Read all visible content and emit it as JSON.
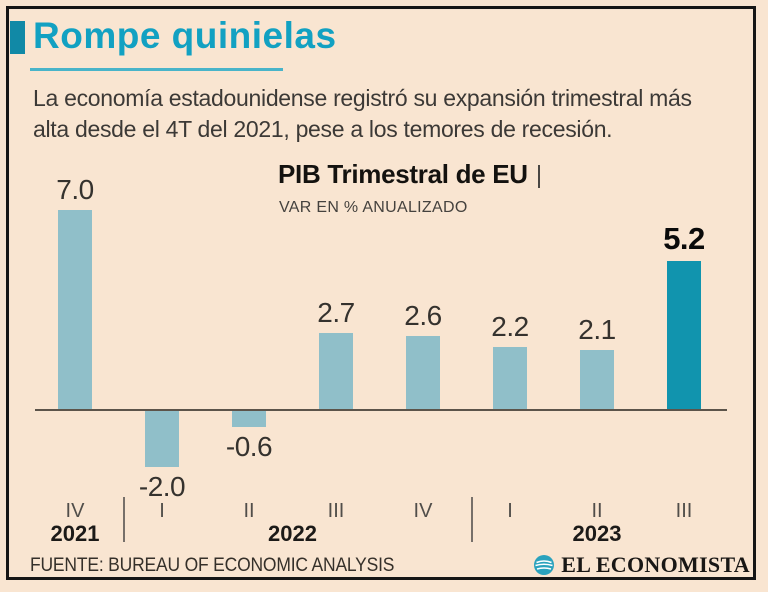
{
  "header": {
    "title": "Rompe quinielas",
    "subtitle_lines": [
      "La economía estadounidense registró su expansión trimestral más",
      "alta desde el 4T del 2021, pese a los temores de recesión."
    ]
  },
  "chart_data": {
    "type": "bar",
    "title": "PIB Trimestral de EU",
    "title_separator": "|",
    "subtitle": "VAR EN % ANUALIZADO",
    "categories": [
      "IV",
      "I",
      "II",
      "III",
      "IV",
      "I",
      "II",
      "III"
    ],
    "values": [
      7.0,
      -2.0,
      -0.6,
      2.7,
      2.6,
      2.2,
      2.1,
      5.2
    ],
    "value_labels": [
      "7.0",
      "-2.0",
      "-0.6",
      "2.7",
      "2.6",
      "2.2",
      "2.1",
      "5.2"
    ],
    "highlight_index": 7,
    "years": [
      {
        "label": "2021",
        "center_index": 0
      },
      {
        "label": "2022",
        "center_index": 2.5
      },
      {
        "label": "2023",
        "center_index": 6
      }
    ],
    "year_divider_after_index": [
      0,
      4
    ],
    "ylim": [
      -2.5,
      7.5
    ],
    "grid": false,
    "bar_color": "#90bfc9",
    "highlight_color": "#1194ae"
  },
  "footer": {
    "source": "FUENTE: BUREAU OF ECONOMIC ANALYSIS",
    "brand": "EL ECONOMISTA"
  },
  "colors": {
    "background": "#f9e5d1",
    "accent_teal": "#12a1c2",
    "axis": "#5c544a",
    "frame": "#161616"
  }
}
